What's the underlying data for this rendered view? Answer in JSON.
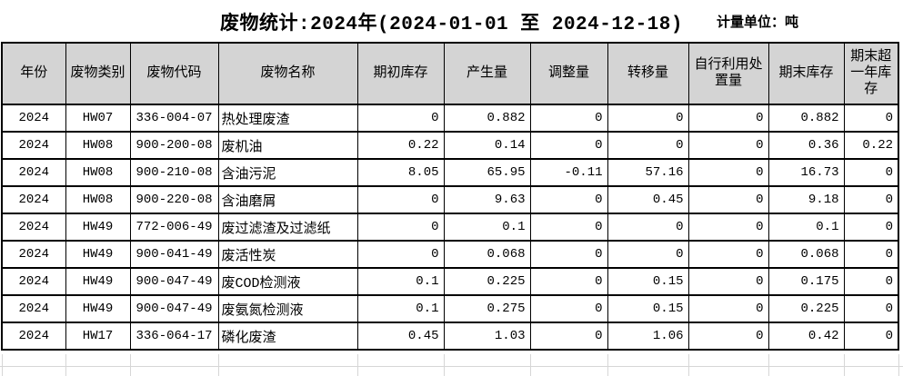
{
  "title": "废物统计:2024年(2024-01-01 至 2024-12-18)",
  "unit_label": "计量单位：吨",
  "colors": {
    "header_bg": "#d4d4d4",
    "table_border": "#000000",
    "gridline": "#d6d6d6",
    "background": "#ffffff"
  },
  "table": {
    "columns": [
      {
        "label": "年份"
      },
      {
        "label": "废物类别"
      },
      {
        "label": "废物代码"
      },
      {
        "label": "废物名称"
      },
      {
        "label": "期初库存"
      },
      {
        "label": "产生量"
      },
      {
        "label": "调整量"
      },
      {
        "label": "转移量"
      },
      {
        "label": "自行利用处置量"
      },
      {
        "label": "期末库存"
      },
      {
        "label": "期末超一年库存"
      }
    ],
    "rows": [
      {
        "cells": [
          "2024",
          "HW07",
          "336-004-07",
          "热处理废渣",
          "0",
          "0.882",
          "0",
          "0",
          "0",
          "0.882",
          "0"
        ]
      },
      {
        "cells": [
          "2024",
          "HW08",
          "900-200-08",
          "废机油",
          "0.22",
          "0.14",
          "0",
          "0",
          "0",
          "0.36",
          "0.22"
        ]
      },
      {
        "cells": [
          "2024",
          "HW08",
          "900-210-08",
          "含油污泥",
          "8.05",
          "65.95",
          "-0.11",
          "57.16",
          "0",
          "16.73",
          "0"
        ]
      },
      {
        "cells": [
          "2024",
          "HW08",
          "900-220-08",
          "含油磨屑",
          "0",
          "9.63",
          "0",
          "0.45",
          "0",
          "9.18",
          "0"
        ]
      },
      {
        "cells": [
          "2024",
          "HW49",
          "772-006-49",
          "废过滤渣及过滤纸",
          "0",
          "0.1",
          "0",
          "0",
          "0",
          "0.1",
          "0"
        ]
      },
      {
        "cells": [
          "2024",
          "HW49",
          "900-041-49",
          "废活性炭",
          "0",
          "0.068",
          "0",
          "0",
          "0",
          "0.068",
          "0"
        ]
      },
      {
        "cells": [
          "2024",
          "HW49",
          "900-047-49",
          "废COD检测液",
          "0.1",
          "0.225",
          "0",
          "0.15",
          "0",
          "0.175",
          "0"
        ]
      },
      {
        "cells": [
          "2024",
          "HW49",
          "900-047-49",
          "废氨氮检测液",
          "0.1",
          "0.275",
          "0",
          "0.15",
          "0",
          "0.225",
          "0"
        ]
      },
      {
        "cells": [
          "2024",
          "HW17",
          "336-064-17",
          "磷化废渣",
          "0.45",
          "1.03",
          "0",
          "1.06",
          "0",
          "0.42",
          "0"
        ]
      }
    ]
  }
}
